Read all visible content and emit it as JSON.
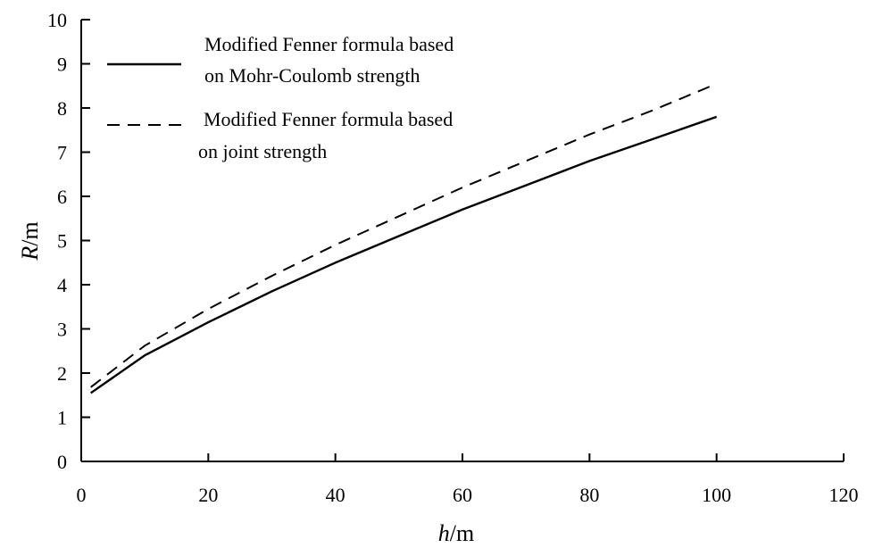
{
  "chart_data": {
    "type": "line",
    "xlabel": {
      "italic": "h",
      "unit": "/m"
    },
    "ylabel": {
      "italic": "R",
      "unit": "/m"
    },
    "xlim": [
      0,
      120
    ],
    "ylim": [
      0,
      10
    ],
    "x_ticks": [
      "0",
      "20",
      "40",
      "60",
      "80",
      "100",
      "120"
    ],
    "y_ticks": [
      "0",
      "1",
      "2",
      "3",
      "4",
      "5",
      "6",
      "7",
      "8",
      "9",
      "10"
    ],
    "grid": false,
    "legend_position": "top-left",
    "series": [
      {
        "name_lines": [
          "Modified Fenner formula based",
          "on Mohr-Coulomb strength"
        ],
        "style": "solid",
        "x": [
          1.5,
          10,
          20,
          30,
          40,
          50,
          60,
          70,
          80,
          90,
          100
        ],
        "y": [
          1.55,
          2.4,
          3.15,
          3.85,
          4.5,
          5.1,
          5.7,
          6.25,
          6.8,
          7.3,
          7.8
        ]
      },
      {
        "name_lines": [
          "Modified Fenner formula based",
          "on joint strength"
        ],
        "style": "dashed",
        "x": [
          1.5,
          10,
          20,
          30,
          40,
          50,
          60,
          70,
          80,
          90,
          100
        ],
        "y": [
          1.68,
          2.62,
          3.45,
          4.2,
          4.9,
          5.55,
          6.2,
          6.8,
          7.4,
          7.95,
          8.55
        ]
      }
    ]
  }
}
